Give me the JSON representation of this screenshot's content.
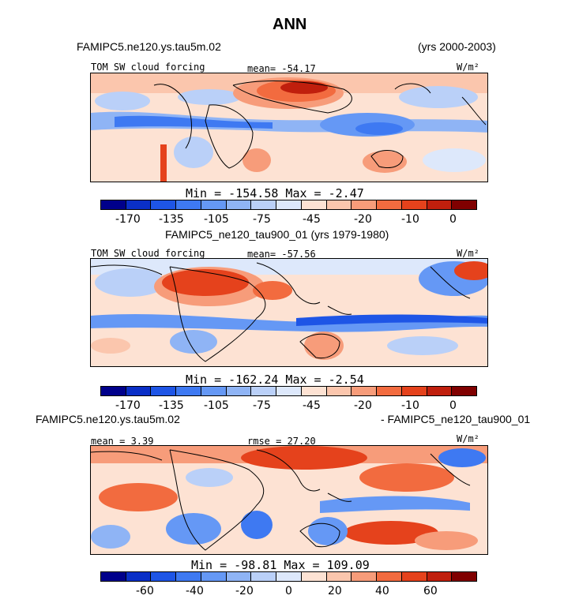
{
  "title": "ANN",
  "colorbar_colors": [
    "#00008b",
    "#0a2fc7",
    "#1e55e6",
    "#3e79f2",
    "#6598f5",
    "#8fb4f5",
    "#bad0f8",
    "#dde8fb",
    "#fde2d3",
    "#fbc6ad",
    "#f79c7a",
    "#f26b3f",
    "#e5421c",
    "#c01f0d",
    "#800000"
  ],
  "panel1": {
    "case": "FAMIPC5.ne120.ys.tau5m.02",
    "years": "(yrs 2000-2003)",
    "var": "TOM SW cloud forcing",
    "mean": "mean= -54.17",
    "units": "W/m²",
    "minmax": "Min = -154.58 Max =  -2.47",
    "ticks": [
      "-170",
      "-135",
      "-105",
      "-75",
      "-45",
      "-20",
      "-10",
      "0"
    ]
  },
  "panel2": {
    "header": "FAMIPC5_ne120_tau900_01 (yrs 1979-1980)",
    "var": "TOM SW cloud forcing",
    "mean": "mean= -57.56",
    "units": "W/m²",
    "minmax": "Min = -162.24 Max =  -2.54",
    "ticks": [
      "-170",
      "-135",
      "-105",
      "-75",
      "-45",
      "-20",
      "-10",
      "0"
    ]
  },
  "panel3": {
    "case_left": "FAMIPC5.ne120.ys.tau5m.02",
    "case_right": "- FAMIPC5_ne120_tau900_01",
    "mean": "mean =   3.39",
    "rmse": "rmse =  27.20",
    "units": "W/m²",
    "minmax": "Min = -98.81 Max = 109.09",
    "ticks": [
      "-60",
      "-40",
      "-20",
      "0",
      "20",
      "40",
      "60"
    ]
  }
}
